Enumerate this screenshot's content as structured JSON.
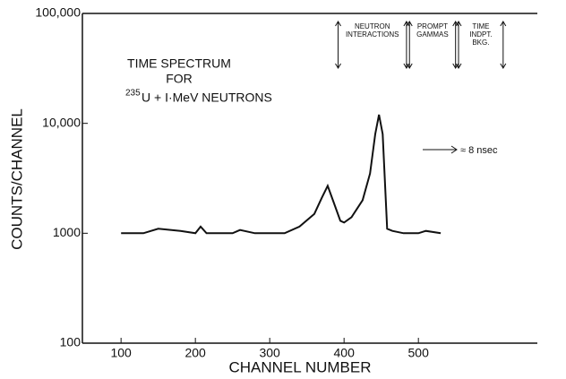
{
  "chart_data": {
    "type": "line",
    "xlabel": "CHANNEL NUMBER",
    "ylabel": "COUNTS/CHANNEL",
    "annotations": [
      "TIME SPECTRUM",
      "FOR"
    ],
    "reaction": {
      "superscript": "235",
      "text": "U + I·MeV NEUTRONS"
    },
    "fwhm_label": "≈ 8 nsec",
    "regions": [
      {
        "lines": [
          "NEUTRON",
          "INTERACTIONS"
        ],
        "from": 392,
        "to": 484
      },
      {
        "lines": [
          "PROMPT",
          "GAMMAS"
        ],
        "from": 488,
        "to": 550
      },
      {
        "lines": [
          "TIME",
          "INDPT.",
          "BKG."
        ],
        "from": 554,
        "to": 614
      }
    ],
    "log_y": true,
    "xlim": [
      48,
      660
    ],
    "ylim": [
      100,
      100000
    ],
    "xticks": [
      100,
      200,
      300,
      400,
      500
    ],
    "yticks": [
      {
        "value": 100,
        "label": "100"
      },
      {
        "value": 1000,
        "label": "1000"
      },
      {
        "value": 10000,
        "label": "10,000"
      },
      {
        "value": 100000,
        "label": "100,000"
      }
    ],
    "series": [
      {
        "name": "235U time spectrum",
        "color": "#111111",
        "x": [
          100,
          130,
          150,
          180,
          200,
          207,
          215,
          250,
          260,
          280,
          320,
          340,
          360,
          370,
          378,
          385,
          395,
          400,
          410,
          425,
          435,
          442,
          447,
          452,
          458,
          465,
          480,
          500,
          510,
          530
        ],
        "values": [
          1000,
          1000,
          1100,
          1050,
          1000,
          1150,
          1000,
          1000,
          1070,
          1000,
          1000,
          1150,
          1500,
          2100,
          2700,
          2000,
          1300,
          1250,
          1400,
          2000,
          3500,
          8000,
          12000,
          8000,
          1100,
          1050,
          1000,
          1000,
          1050,
          1000
        ]
      }
    ]
  }
}
